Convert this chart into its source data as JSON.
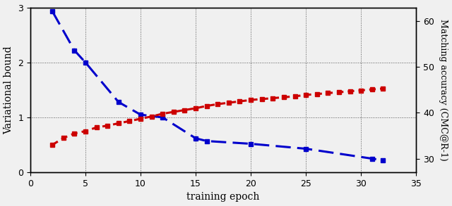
{
  "blue_x": [
    2,
    4,
    5,
    8,
    10,
    12,
    15,
    16,
    20,
    25,
    31,
    32
  ],
  "blue_y": [
    2.93,
    2.22,
    2.0,
    1.28,
    1.05,
    1.0,
    0.62,
    0.57,
    0.52,
    0.43,
    0.25,
    0.22
  ],
  "red_x": [
    2,
    3,
    4,
    5,
    6,
    7,
    8,
    9,
    10,
    11,
    12,
    13,
    14,
    15,
    16,
    17,
    18,
    19,
    20,
    21,
    22,
    23,
    24,
    25,
    26,
    27,
    28,
    29,
    30,
    31,
    32
  ],
  "red_y": [
    33.0,
    34.5,
    35.5,
    36.0,
    36.8,
    37.2,
    37.7,
    38.2,
    38.7,
    39.2,
    39.8,
    40.2,
    40.6,
    41.0,
    41.5,
    41.9,
    42.2,
    42.5,
    42.8,
    43.0,
    43.2,
    43.4,
    43.6,
    43.9,
    44.1,
    44.3,
    44.5,
    44.7,
    44.9,
    45.1,
    45.3
  ],
  "xlabel": "training epoch",
  "ylabel_left": "Variational bound",
  "ylabel_right": "Matching accuracy (CMC@R-1)",
  "xlim": [
    0,
    35
  ],
  "ylim_left": [
    0,
    3
  ],
  "ylim_right": [
    27,
    63
  ],
  "xticks": [
    0,
    5,
    10,
    15,
    20,
    25,
    30,
    35
  ],
  "yticks_left": [
    0,
    1,
    2,
    3
  ],
  "yticks_right": [
    30,
    40,
    50,
    60
  ],
  "blue_color": "#0000CC",
  "red_color": "#CC0000",
  "background": "#f0f0f0",
  "grid_color": "#555555"
}
